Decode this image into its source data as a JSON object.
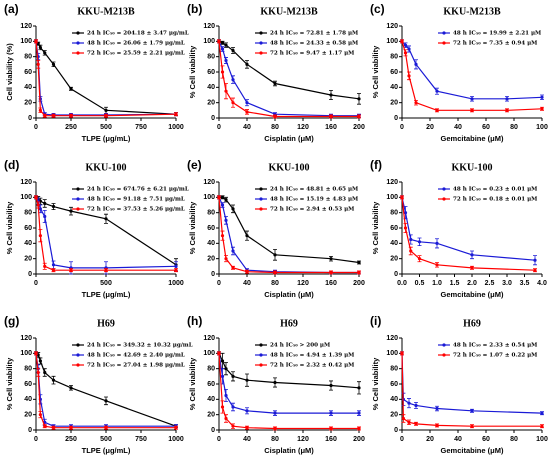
{
  "chart_data": [
    {
      "type": "line",
      "panel": "(a)",
      "title": "KKU-M213B",
      "x_label": "TLPE (μg/mL)",
      "y_label": "Cell viability (%)",
      "x": [
        0,
        15.6,
        31.25,
        62.5,
        125,
        250,
        500,
        1000
      ],
      "xlim": [
        0,
        1000
      ],
      "xticks": [
        0,
        250,
        500,
        750,
        1000
      ],
      "ylim": [
        0,
        120
      ],
      "yticks": [
        0,
        20,
        40,
        60,
        80,
        100,
        120
      ],
      "series": [
        {
          "name": "24 h IC₅₀ = 204.18 ± 3.47 μg/mL",
          "color": "#000000",
          "values": [
            100,
            97,
            92,
            85,
            70,
            38,
            10,
            5
          ],
          "errors": [
            2,
            2,
            3,
            3,
            3,
            2,
            4,
            2
          ]
        },
        {
          "name": "48 h IC₅₀ = 26.06 ± 1.79 μg/mL",
          "color": "#1a1ad6",
          "values": [
            100,
            80,
            25,
            5,
            4,
            4,
            4,
            5
          ],
          "errors": [
            2,
            4,
            3,
            2,
            2,
            2,
            2,
            2
          ]
        },
        {
          "name": "72 h IC₅₀ = 25.59 ± 2.21 μg/mL",
          "color": "#ff0000",
          "values": [
            100,
            70,
            10,
            3,
            3,
            3,
            3,
            5
          ],
          "errors": [
            2,
            5,
            3,
            2,
            2,
            2,
            2,
            2
          ]
        }
      ]
    },
    {
      "type": "line",
      "panel": "(b)",
      "title": "KKU-M213B",
      "x_label": "Cisplatin (μM)",
      "y_label": "% Cell viability",
      "x": [
        0,
        5,
        10,
        20,
        40,
        80,
        160,
        200
      ],
      "xlim": [
        0,
        200
      ],
      "xticks": [
        0,
        40,
        80,
        120,
        160,
        200
      ],
      "ylim": [
        0,
        120
      ],
      "yticks": [
        0,
        20,
        40,
        60,
        80,
        100,
        120
      ],
      "series": [
        {
          "name": "24 h IC₅₀ = 72.81 ± 1.78 μM",
          "color": "#000000",
          "values": [
            100,
            98,
            95,
            88,
            70,
            45,
            30,
            25
          ],
          "errors": [
            2,
            2,
            3,
            4,
            5,
            3,
            6,
            7
          ]
        },
        {
          "name": "48 h IC₅₀ = 24.33 ± 0.58 μM",
          "color": "#1a1ad6",
          "values": [
            100,
            90,
            75,
            50,
            20,
            5,
            3,
            3
          ],
          "errors": [
            2,
            3,
            4,
            5,
            4,
            2,
            2,
            2
          ]
        },
        {
          "name": "72 h IC₅₀ = 9.47 ± 1.17 μM",
          "color": "#ff0000",
          "values": [
            100,
            60,
            35,
            20,
            8,
            2,
            2,
            2
          ],
          "errors": [
            2,
            8,
            10,
            6,
            3,
            2,
            2,
            2
          ]
        }
      ]
    },
    {
      "type": "line",
      "panel": "(c)",
      "title": "KKU-M213B",
      "x_label": "Gemcitabine (μM)",
      "y_label": "% Cell viability",
      "x": [
        0,
        2.5,
        5,
        10,
        25,
        50,
        75,
        100
      ],
      "xlim": [
        0,
        100
      ],
      "xticks": [
        0,
        20,
        40,
        60,
        80,
        100
      ],
      "ylim": [
        0,
        120
      ],
      "yticks": [
        0,
        20,
        40,
        60,
        80,
        100,
        120
      ],
      "series": [
        {
          "name": "48 h IC₅₀ = 19.99 ± 2.21 μM",
          "color": "#1a1ad6",
          "values": [
            100,
            95,
            90,
            70,
            35,
            25,
            25,
            27
          ],
          "errors": [
            2,
            3,
            4,
            6,
            4,
            3,
            3,
            3
          ]
        },
        {
          "name": "72 h IC₅₀ = 7.35 ± 0.94 μM",
          "color": "#ff0000",
          "values": [
            100,
            85,
            55,
            20,
            10,
            10,
            10,
            12
          ],
          "errors": [
            2,
            4,
            5,
            3,
            2,
            2,
            2,
            2
          ]
        }
      ]
    },
    {
      "type": "line",
      "panel": "(d)",
      "title": "KKU-100",
      "x_label": "TLPE (μg/mL)",
      "y_label": "% Cell viability",
      "x": [
        0,
        15.6,
        31.25,
        62.5,
        125,
        250,
        500,
        1000
      ],
      "xlim": [
        0,
        1000
      ],
      "xticks": [
        0,
        500,
        1000
      ],
      "ylim": [
        0,
        120
      ],
      "yticks": [
        0,
        20,
        40,
        60,
        80,
        100,
        120
      ],
      "series": [
        {
          "name": "24 h IC₅₀ = 674.76 ± 6.21 μg/mL",
          "color": "#000000",
          "values": [
            100,
            98,
            95,
            92,
            88,
            82,
            72,
            12
          ],
          "errors": [
            2,
            3,
            4,
            5,
            4,
            5,
            6,
            8
          ]
        },
        {
          "name": "48 h IC₅₀ = 91.18 ± 7.51 μg/mL",
          "color": "#1a1ad6",
          "values": [
            100,
            95,
            85,
            75,
            12,
            8,
            8,
            10
          ],
          "errors": [
            2,
            4,
            5,
            8,
            5,
            8,
            8,
            6
          ]
        },
        {
          "name": "72 h IC₅₀ = 37.53 ± 5.26 μg/mL",
          "color": "#ff0000",
          "values": [
            100,
            90,
            50,
            10,
            5,
            5,
            5,
            5
          ],
          "errors": [
            2,
            4,
            8,
            4,
            2,
            2,
            2,
            2
          ]
        }
      ]
    },
    {
      "type": "line",
      "panel": "(e)",
      "title": "KKU-100",
      "x_label": "Cisplatin (μM)",
      "y_label": "% Cell viability",
      "x": [
        0,
        5,
        10,
        20,
        40,
        80,
        160,
        200
      ],
      "xlim": [
        0,
        200
      ],
      "xticks": [
        0,
        40,
        80,
        120,
        160,
        200
      ],
      "ylim": [
        0,
        120
      ],
      "yticks": [
        0,
        20,
        40,
        60,
        80,
        100,
        120
      ],
      "series": [
        {
          "name": "24 h IC₅₀ = 48.81 ± 0.65 μM",
          "color": "#000000",
          "values": [
            100,
            100,
            97,
            85,
            50,
            25,
            20,
            15
          ],
          "errors": [
            2,
            2,
            3,
            5,
            6,
            7,
            3,
            2
          ]
        },
        {
          "name": "48 h IC₅₀ = 15.19 ± 4.83 μM",
          "color": "#1a1ad6",
          "values": [
            100,
            90,
            70,
            30,
            5,
            3,
            2,
            2
          ],
          "errors": [
            2,
            3,
            5,
            5,
            2,
            2,
            2,
            2
          ]
        },
        {
          "name": "72 h IC₅₀ = 2.94 ± 0.53 μM",
          "color": "#ff0000",
          "values": [
            100,
            50,
            20,
            8,
            3,
            2,
            2,
            2
          ],
          "errors": [
            2,
            6,
            4,
            2,
            2,
            2,
            2,
            2
          ]
        }
      ]
    },
    {
      "type": "line",
      "panel": "(f)",
      "title": "KKU-100",
      "x_label": "Gemcitabine (μM)",
      "y_label": "% Cell viability",
      "x": [
        0,
        0.1,
        0.25,
        0.5,
        1,
        2,
        3.8
      ],
      "xlim": [
        0,
        4
      ],
      "xticks": [
        {
          "value": 0,
          "label": "0.0"
        },
        {
          "value": 0.5,
          "label": "0.5"
        },
        {
          "value": 1,
          "label": "1.0"
        },
        {
          "value": 1.5,
          "label": "1.5"
        },
        {
          "value": 2,
          "label": "2.0"
        },
        {
          "value": 2.5,
          "label": "2.5"
        },
        {
          "value": 3,
          "label": "3.0"
        },
        {
          "value": 3.5,
          "label": "3.5"
        },
        {
          "value": 4,
          "label": "4.0"
        }
      ],
      "ylim": [
        0,
        120
      ],
      "yticks": [
        0,
        20,
        40,
        60,
        80,
        100,
        120
      ],
      "series": [
        {
          "name": "48 h IC₅₀ = 0.23 ± 0.01 μM",
          "color": "#1a1ad6",
          "values": [
            100,
            80,
            45,
            42,
            40,
            25,
            18
          ],
          "errors": [
            2,
            8,
            6,
            5,
            6,
            5,
            6
          ]
        },
        {
          "name": "72 h IC₅₀ = 0.18 ± 0.01 μM",
          "color": "#ff0000",
          "values": [
            100,
            60,
            30,
            20,
            12,
            8,
            5
          ],
          "errors": [
            2,
            6,
            5,
            4,
            3,
            2,
            2
          ]
        }
      ]
    },
    {
      "type": "line",
      "panel": "(g)",
      "title": "H69",
      "x_label": "TLPE (μg/mL)",
      "y_label": "% Cell viability",
      "x": [
        0,
        15.6,
        31.25,
        62.5,
        125,
        250,
        500,
        1000
      ],
      "xlim": [
        0,
        1000
      ],
      "xticks": [
        0,
        250,
        500,
        750,
        1000
      ],
      "ylim": [
        0,
        120
      ],
      "yticks": [
        0,
        20,
        40,
        60,
        80,
        100,
        120
      ],
      "series": [
        {
          "name": "24 h IC₅₀ = 349.32 ± 10.32 μg/mL",
          "color": "#000000",
          "values": [
            100,
            98,
            90,
            75,
            65,
            55,
            38,
            5
          ],
          "errors": [
            2,
            3,
            4,
            5,
            5,
            3,
            5,
            2
          ]
        },
        {
          "name": "48 h IC₅₀ = 42.69 ± 2.40 μg/mL",
          "color": "#1a1ad6",
          "values": [
            100,
            80,
            40,
            10,
            5,
            5,
            5,
            5
          ],
          "errors": [
            2,
            5,
            6,
            4,
            2,
            2,
            2,
            2
          ]
        },
        {
          "name": "72 h IC₅₀ = 27.04 ± 1.98 μg/mL",
          "color": "#ff0000",
          "values": [
            100,
            75,
            20,
            5,
            3,
            3,
            3,
            3
          ],
          "errors": [
            2,
            5,
            4,
            2,
            2,
            2,
            2,
            2
          ]
        }
      ]
    },
    {
      "type": "line",
      "panel": "(h)",
      "title": "H69",
      "x_label": "Cisplatin (μM)",
      "y_label": "% Cell viability",
      "x": [
        0,
        5,
        10,
        20,
        40,
        80,
        160,
        200
      ],
      "xlim": [
        0,
        200
      ],
      "xticks": [
        0,
        40,
        80,
        120,
        160,
        200
      ],
      "ylim": [
        0,
        120
      ],
      "yticks": [
        0,
        20,
        40,
        60,
        80,
        100,
        120
      ],
      "series": [
        {
          "name": "24 h IC₅₀ > 200 μM",
          "color": "#000000",
          "values": [
            100,
            90,
            80,
            70,
            65,
            62,
            58,
            55
          ],
          "errors": [
            2,
            10,
            8,
            6,
            8,
            6,
            6,
            8
          ]
        },
        {
          "name": "48 h IC₅₀ = 4.94 ± 1.39 μM",
          "color": "#1a1ad6",
          "values": [
            100,
            70,
            45,
            30,
            25,
            22,
            22,
            22
          ],
          "errors": [
            2,
            10,
            8,
            5,
            4,
            3,
            3,
            3
          ]
        },
        {
          "name": "72 h IC₅₀ = 2.32 ± 0.42 μM",
          "color": "#ff0000",
          "values": [
            100,
            30,
            15,
            5,
            3,
            2,
            2,
            2
          ],
          "errors": [
            2,
            8,
            5,
            3,
            2,
            2,
            2,
            2
          ]
        }
      ]
    },
    {
      "type": "line",
      "panel": "(i)",
      "title": "H69",
      "x_label": "Gemcitabine (μM)",
      "y_label": "% Cell viability",
      "x": [
        0,
        1,
        5,
        10,
        25,
        50,
        100
      ],
      "xlim": [
        0,
        100
      ],
      "xticks": [
        0,
        20,
        40,
        60,
        80,
        100
      ],
      "ylim": [
        0,
        120
      ],
      "yticks": [
        0,
        20,
        40,
        60,
        80,
        100,
        120
      ],
      "series": [
        {
          "name": "48 h IC₅₀ = 2.33 ± 0.54 μM",
          "color": "#1a1ad6",
          "values": [
            100,
            40,
            35,
            32,
            28,
            25,
            22
          ],
          "errors": [
            2,
            8,
            6,
            4,
            3,
            2,
            2
          ]
        },
        {
          "name": "72 h IC₅₀ = 1.07 ± 0.22 μM",
          "color": "#ff0000",
          "values": [
            100,
            15,
            10,
            8,
            6,
            5,
            5
          ],
          "errors": [
            2,
            5,
            3,
            2,
            2,
            2,
            2
          ]
        }
      ]
    }
  ]
}
